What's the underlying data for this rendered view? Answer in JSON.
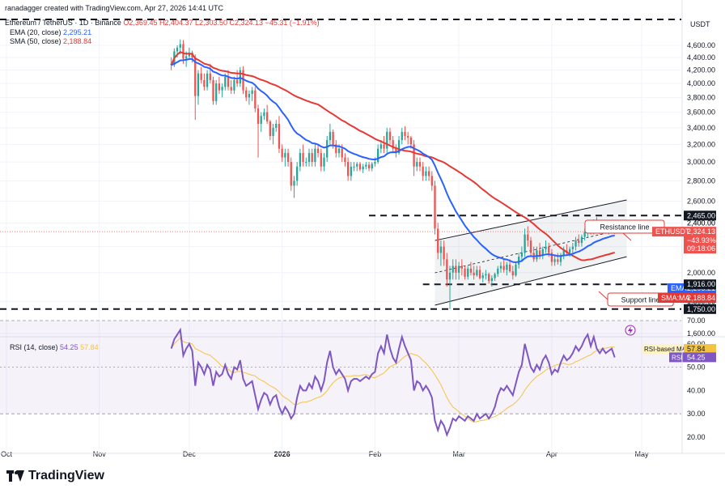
{
  "header": {
    "credit": "ranadagger created with TradingView.com, Apr 27, 2026 14:41 UTC",
    "symbol_line": "Ethereum / TetherUS · 1D · Binance",
    "ohlc": "O2,369.45 H2,404.37 L2,303.50 C2,324.13 −45.31 (−1.91%)",
    "ema_label": "EMA (20, close)",
    "ema_value": "2,295.21",
    "sma_label": "SMA (50, close)",
    "sma_value": "2,188.84",
    "rsi_label": "RSI (14, close)",
    "rsi_value": "54.25",
    "rsi_ma_value": "57.84"
  },
  "brand": "TradingView",
  "colors": {
    "up": "#26a69a",
    "down": "#ef5350",
    "ema": "#2962ff",
    "sma": "#e53935",
    "rsi": "#7e57c2",
    "rsi_ma": "#f5c342",
    "axis_text": "#131722",
    "grid": "#f0f3fa"
  },
  "chart_data": [
    {
      "type": "candlestick",
      "title": "Ethereum / TetherUS · 1D · Binance",
      "y_axis_unit": "USDT",
      "ylim": [
        1590,
        5000
      ],
      "y_ticks": [
        1600,
        1800,
        2000,
        2200,
        2400,
        2600,
        2800,
        3000,
        3200,
        3400,
        3600,
        3800,
        4000,
        4200,
        4400,
        4600
      ],
      "x_labels": [
        "Oct",
        "Nov",
        "Dec",
        "2026",
        "Feb",
        "Mar",
        "Apr",
        "May"
      ],
      "x_label_days": [
        0,
        31,
        61,
        92,
        123,
        151,
        182,
        212
      ],
      "last_close": 2324.13,
      "last_change_pct": -43.93,
      "countdown": "09:18:06",
      "candles_ohlc": [
        [
          4300,
          4400,
          4200,
          4280
        ],
        [
          4280,
          4550,
          4250,
          4500
        ],
        [
          4500,
          4600,
          4400,
          4560
        ],
        [
          4560,
          4700,
          4450,
          4620
        ],
        [
          4620,
          4690,
          4300,
          4380
        ],
        [
          4380,
          4500,
          4250,
          4420
        ],
        [
          4420,
          4560,
          4380,
          4480
        ],
        [
          4480,
          4510,
          4320,
          4400
        ],
        [
          4400,
          4450,
          3500,
          3820
        ],
        [
          3820,
          4200,
          3700,
          4150
        ],
        [
          4150,
          4250,
          4000,
          4050
        ],
        [
          4050,
          4150,
          3900,
          3950
        ],
        [
          3950,
          4200,
          3900,
          4150
        ],
        [
          4150,
          4300,
          4000,
          4050
        ],
        [
          4050,
          4100,
          3700,
          3750
        ],
        [
          3750,
          4050,
          3700,
          4000
        ],
        [
          4000,
          4100,
          3850,
          3900
        ],
        [
          3900,
          4000,
          3800,
          3950
        ],
        [
          3950,
          4150,
          3900,
          4100
        ],
        [
          4100,
          4200,
          3900,
          3950
        ],
        [
          3950,
          4050,
          3850,
          3900
        ],
        [
          3900,
          4100,
          3850,
          4050
        ],
        [
          4050,
          4200,
          3950,
          4000
        ],
        [
          4000,
          4250,
          3950,
          4200
        ],
        [
          4200,
          4260,
          3850,
          3900
        ],
        [
          3900,
          3950,
          3750,
          3800
        ],
        [
          3800,
          3900,
          3700,
          3850
        ],
        [
          3850,
          3950,
          3750,
          3900
        ],
        [
          3900,
          3950,
          3600,
          3650
        ],
        [
          3650,
          3700,
          3050,
          3450
        ],
        [
          3450,
          3600,
          3350,
          3550
        ],
        [
          3550,
          3650,
          3500,
          3600
        ],
        [
          3600,
          3700,
          3450,
          3480
        ],
        [
          3480,
          3500,
          3250,
          3300
        ],
        [
          3300,
          3450,
          3200,
          3400
        ],
        [
          3400,
          3500,
          3350,
          3450
        ],
        [
          3450,
          3550,
          3100,
          3150
        ],
        [
          3150,
          3200,
          3000,
          3050
        ],
        [
          3050,
          3150,
          2950,
          3100
        ],
        [
          3100,
          3150,
          2950,
          3000
        ],
        [
          3000,
          3050,
          2700,
          2750
        ],
        [
          2750,
          2850,
          2630,
          2800
        ],
        [
          2800,
          3000,
          2750,
          2950
        ],
        [
          2950,
          3150,
          2900,
          3100
        ],
        [
          3100,
          3200,
          2950,
          3000
        ],
        [
          3000,
          3050,
          2950,
          3000
        ],
        [
          3000,
          3150,
          2950,
          3100
        ],
        [
          3100,
          3150,
          2950,
          3000
        ],
        [
          3000,
          3200,
          2950,
          3150
        ],
        [
          3150,
          3200,
          3050,
          3100
        ],
        [
          3100,
          3150,
          2900,
          2950
        ],
        [
          2950,
          3100,
          2900,
          3050
        ],
        [
          3050,
          3300,
          3000,
          3250
        ],
        [
          3250,
          3450,
          3200,
          3350
        ],
        [
          3350,
          3380,
          3150,
          3200
        ],
        [
          3200,
          3250,
          3050,
          3100
        ],
        [
          3100,
          3200,
          3050,
          3150
        ],
        [
          3150,
          3200,
          3000,
          3050
        ],
        [
          3050,
          3100,
          2950,
          3000
        ],
        [
          3000,
          3050,
          2800,
          2850
        ],
        [
          2850,
          3000,
          2800,
          2950
        ],
        [
          2950,
          3000,
          2900,
          2950
        ],
        [
          2950,
          3000,
          2900,
          2980
        ],
        [
          2980,
          3000,
          2900,
          2920
        ],
        [
          2920,
          2980,
          2880,
          2950
        ],
        [
          2950,
          3000,
          2920,
          2970
        ],
        [
          2970,
          3000,
          2900,
          2930
        ],
        [
          2930,
          3000,
          2900,
          2980
        ],
        [
          2980,
          3050,
          2950,
          3000
        ],
        [
          3000,
          3200,
          2980,
          3150
        ],
        [
          3150,
          3250,
          3100,
          3200
        ],
        [
          3200,
          3300,
          3100,
          3150
        ],
        [
          3150,
          3400,
          3100,
          3350
        ],
        [
          3350,
          3400,
          3200,
          3250
        ],
        [
          3250,
          3300,
          3100,
          3150
        ],
        [
          3150,
          3200,
          3050,
          3100
        ],
        [
          3100,
          3300,
          3080,
          3250
        ],
        [
          3250,
          3400,
          3200,
          3350
        ],
        [
          3350,
          3420,
          3250,
          3300
        ],
        [
          3300,
          3350,
          3200,
          3280
        ],
        [
          3280,
          3300,
          3150,
          3200
        ],
        [
          3200,
          3250,
          2850,
          2950
        ],
        [
          2950,
          3050,
          2900,
          3000
        ],
        [
          3000,
          3050,
          2900,
          2950
        ],
        [
          2950,
          3000,
          2800,
          2850
        ],
        [
          2850,
          2950,
          2800,
          2900
        ],
        [
          2900,
          2950,
          2800,
          2850
        ],
        [
          2850,
          2900,
          2700,
          2750
        ],
        [
          2750,
          2800,
          2300,
          2350
        ],
        [
          2350,
          2400,
          2100,
          2150
        ],
        [
          2150,
          2250,
          2050,
          2200
        ],
        [
          2200,
          2250,
          2050,
          2100
        ],
        [
          2100,
          2150,
          1900,
          1950
        ],
        [
          1950,
          2050,
          1750,
          2000
        ],
        [
          2000,
          2100,
          1950,
          2050
        ],
        [
          2050,
          2100,
          1950,
          2000
        ],
        [
          2000,
          2080,
          1950,
          2050
        ],
        [
          2050,
          2100,
          1980,
          2030
        ],
        [
          2030,
          2050,
          1950,
          1970
        ],
        [
          1970,
          2050,
          1950,
          2030
        ],
        [
          2030,
          2080,
          1980,
          2000
        ],
        [
          2000,
          2050,
          1950,
          1980
        ],
        [
          1980,
          2050,
          1970,
          2020
        ],
        [
          2020,
          2050,
          1950,
          1960
        ],
        [
          1960,
          2000,
          1930,
          1980
        ],
        [
          1980,
          2020,
          1950,
          1990
        ],
        [
          1990,
          2000,
          1920,
          1940
        ],
        [
          1940,
          1980,
          1900,
          1960
        ],
        [
          1960,
          2000,
          1940,
          1990
        ],
        [
          1990,
          2050,
          1970,
          2030
        ],
        [
          2030,
          2080,
          2000,
          2050
        ],
        [
          2050,
          2100,
          2000,
          2020
        ],
        [
          2020,
          2080,
          1980,
          2060
        ],
        [
          2060,
          2100,
          2000,
          2010
        ],
        [
          2010,
          2050,
          1950,
          1980
        ],
        [
          1980,
          2080,
          1970,
          2060
        ],
        [
          2060,
          2150,
          2030,
          2120
        ],
        [
          2120,
          2200,
          2080,
          2150
        ],
        [
          2150,
          2350,
          2120,
          2300
        ],
        [
          2300,
          2370,
          2200,
          2250
        ],
        [
          2250,
          2280,
          2120,
          2150
        ],
        [
          2150,
          2200,
          2080,
          2100
        ],
        [
          2100,
          2200,
          2080,
          2170
        ],
        [
          2170,
          2230,
          2100,
          2130
        ],
        [
          2130,
          2200,
          2100,
          2180
        ],
        [
          2180,
          2250,
          2150,
          2200
        ],
        [
          2200,
          2230,
          2120,
          2150
        ],
        [
          2150,
          2180,
          2050,
          2080
        ],
        [
          2080,
          2130,
          2050,
          2100
        ],
        [
          2100,
          2150,
          2060,
          2080
        ],
        [
          2080,
          2150,
          2050,
          2130
        ],
        [
          2130,
          2200,
          2100,
          2170
        ],
        [
          2170,
          2220,
          2130,
          2150
        ],
        [
          2150,
          2200,
          2120,
          2180
        ],
        [
          2180,
          2230,
          2150,
          2200
        ],
        [
          2200,
          2280,
          2170,
          2250
        ],
        [
          2250,
          2300,
          2200,
          2230
        ],
        [
          2230,
          2300,
          2200,
          2280
        ],
        [
          2280,
          2350,
          2250,
          2320
        ],
        [
          2320,
          2400,
          2280,
          2370
        ],
        [
          2370,
          2410,
          2300,
          2320
        ],
        [
          2320,
          2430,
          2300,
          2400
        ],
        [
          2400,
          2450,
          2330,
          2350
        ],
        [
          2350,
          2400,
          2300,
          2330
        ],
        [
          2330,
          2390,
          2300,
          2370
        ],
        [
          2370,
          2400,
          2320,
          2340
        ],
        [
          2340,
          2380,
          2300,
          2360
        ],
        [
          2360,
          2400,
          2330,
          2369.45
        ],
        [
          2369.45,
          2404.37,
          2303.5,
          2324.13
        ]
      ],
      "series": [
        {
          "name": "EMA (20, close)",
          "last_value": 2295.21
        },
        {
          "name": "SMA (50, close)",
          "last_value": 2188.84
        }
      ],
      "annotations": {
        "resistance_line_label": "Resistance line",
        "support_line_label": "Support line",
        "resistance_level": 2465.0,
        "support_level": 1916.0,
        "bottom_level": 1750.0,
        "right_label_resistance": "2,465.00",
        "right_label_support": "1,916.00",
        "right_label_bottom": "1,750.00",
        "right_label_last": "2,324.13",
        "right_label_change": "−43.93%",
        "right_label_countdown": "09:18:06",
        "right_label_ema": "2,295.21",
        "right_label_sma": "2,188.84",
        "tag_ethusdt": "ETHUSDT",
        "tag_ema": "EMA",
        "tag_sma": "SMA:MA",
        "hidden_top_tick": "2,400.00",
        "hidden_bottom_tick": "1,800.00"
      }
    },
    {
      "type": "line",
      "title": "RSI (14, close)",
      "ylim": [
        15,
        75
      ],
      "y_ticks": [
        20,
        30,
        40,
        50,
        60,
        70
      ],
      "y_tick_labels": [
        "20.00",
        "30.00",
        "40.00",
        "50.00",
        "60.00",
        "70.00"
      ],
      "band_levels": [
        30,
        50,
        70
      ],
      "series": [
        {
          "name": "RSI",
          "last_value": 54.25
        },
        {
          "name": "RSI-based MA",
          "last_value": 57.84
        }
      ],
      "rsi_values": [
        58,
        62,
        64,
        66,
        55,
        58,
        60,
        57,
        42,
        52,
        50,
        47,
        51,
        49,
        42,
        48,
        46,
        47,
        51,
        47,
        45,
        50,
        49,
        53,
        45,
        42,
        43,
        44,
        38,
        32,
        36,
        39,
        38,
        34,
        37,
        38,
        33,
        30,
        33,
        31,
        28,
        30,
        37,
        42,
        40,
        40,
        43,
        41,
        46,
        44,
        40,
        44,
        52,
        57,
        50,
        47,
        49,
        47,
        45,
        40,
        44,
        45,
        45,
        44,
        45,
        46,
        45,
        47,
        48,
        56,
        59,
        56,
        64,
        58,
        54,
        52,
        58,
        63,
        59,
        56,
        53,
        40,
        44,
        43,
        40,
        42,
        40,
        37,
        27,
        23,
        27,
        25,
        21,
        24,
        28,
        27,
        29,
        28,
        27,
        29,
        28,
        27,
        30,
        28,
        29,
        30,
        28,
        30,
        33,
        38,
        41,
        40,
        42,
        40,
        38,
        43,
        48,
        51,
        60,
        55,
        50,
        48,
        51,
        49,
        53,
        55,
        52,
        47,
        49,
        48,
        52,
        55,
        53,
        54,
        56,
        59,
        57,
        59,
        62,
        64,
        59,
        63,
        58,
        56,
        58,
        56,
        57,
        58,
        54.25
      ]
    }
  ]
}
